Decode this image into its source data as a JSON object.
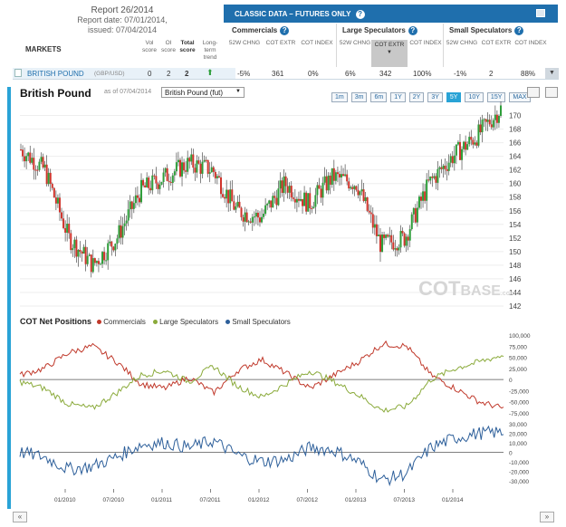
{
  "report": {
    "title": "Report 26/2014",
    "date": "Report date: 07/01/2014,",
    "issued": "issued: 07/04/2014"
  },
  "markets_header": "MARKETS",
  "columns": {
    "vol": "Vol score",
    "oi": "OI score",
    "total": "Total score",
    "trend": "Long-term trend"
  },
  "classic": {
    "title": "CLASSIC DATA – FUTURES ONLY",
    "help": "?"
  },
  "groups": [
    {
      "name": "Commercials",
      "help": "?",
      "subs": [
        "52W CHNG",
        "COT EXTR",
        "COT INDEX"
      ]
    },
    {
      "name": "Large Speculators",
      "help": "?",
      "subs": [
        "52W CHNG",
        "COT EXTR",
        "COT INDEX"
      ]
    },
    {
      "name": "Small Speculators",
      "help": "?",
      "subs": [
        "52W CHNG",
        "COT EXTR",
        "COT INDEX"
      ]
    }
  ],
  "row": {
    "market": "BRITISH POUND",
    "pair": "(GBP/USD)",
    "vol": "0",
    "oi": "2",
    "total": "2",
    "comm": [
      "-5%",
      "361",
      "0%"
    ],
    "large": [
      "6%",
      "342",
      "100%"
    ],
    "small": [
      "-1%",
      "2",
      "88%"
    ]
  },
  "panel": {
    "title": "British Pound",
    "asof": "as of 07/04/2014",
    "select": "British Pound (fut)",
    "ranges": [
      "1m",
      "3m",
      "6m",
      "1Y",
      "2Y",
      "3Y",
      "5Y",
      "10Y",
      "15Y",
      "MAX"
    ],
    "active_range": "5Y"
  },
  "watermark": {
    "cot": "COT",
    "base": "BASE",
    "tld": ".com"
  },
  "legend": {
    "title": "COT Net Positions",
    "items": [
      "Commercials",
      "Large Speculators",
      "Small Speculators"
    ]
  },
  "colors": {
    "commercials": "#c0392b",
    "large": "#8aaa3a",
    "small": "#2d5f9a",
    "accent": "#29a3d6",
    "header": "#1f6fad"
  },
  "nav": {
    "prev": "«",
    "next": "»"
  },
  "chart_data": [
    {
      "type": "candlestick",
      "title": "British Pound",
      "ylim": [
        142,
        171
      ],
      "yticks": [
        142,
        144,
        146,
        148,
        150,
        152,
        154,
        156,
        158,
        160,
        162,
        164,
        166,
        168,
        170
      ],
      "x": [
        "2009-07",
        "2009-10",
        "2010-01",
        "2010-04",
        "2010-07",
        "2010-10",
        "2011-01",
        "2011-04",
        "2011-07",
        "2011-10",
        "2012-01",
        "2012-04",
        "2012-07",
        "2012-10",
        "2013-01",
        "2013-04",
        "2013-07",
        "2013-10",
        "2014-01",
        "2014-04",
        "2014-07"
      ],
      "close": [
        165,
        162,
        152,
        148,
        152,
        159,
        161,
        163,
        162,
        156,
        155,
        160,
        157,
        161,
        160,
        151,
        152,
        160,
        164,
        167,
        171
      ]
    },
    {
      "type": "line",
      "title": "COT Net Positions",
      "ylim": [
        -75000,
        100000
      ],
      "yticks": [
        "100,000",
        "75,000",
        "50,000",
        "25,000",
        "0",
        "-25,000",
        "-50,000",
        "-75,000"
      ],
      "x": [
        "2009-07",
        "2009-10",
        "2010-01",
        "2010-04",
        "2010-07",
        "2010-10",
        "2011-01",
        "2011-04",
        "2011-07",
        "2011-10",
        "2012-01",
        "2012-04",
        "2012-07",
        "2012-10",
        "2013-01",
        "2013-04",
        "2013-07",
        "2013-10",
        "2014-01",
        "2014-04",
        "2014-07"
      ],
      "series": [
        {
          "name": "Commercials",
          "values": [
            10,
            25,
            60,
            75,
            40,
            -10,
            -20,
            5,
            -30,
            20,
            45,
            15,
            -20,
            10,
            40,
            80,
            75,
            10,
            -20,
            -50,
            -65
          ]
        },
        {
          "name": "Large Speculators",
          "values": [
            -5,
            -20,
            -55,
            -65,
            -30,
            10,
            20,
            -5,
            30,
            -15,
            -40,
            -10,
            20,
            -5,
            -35,
            -70,
            -60,
            0,
            25,
            40,
            55
          ]
        }
      ]
    },
    {
      "type": "line",
      "ylim": [
        -35000,
        30000
      ],
      "yticks": [
        "30,000",
        "20,000",
        "10,000",
        "0",
        "-10,000",
        "-20,000",
        "-30,000"
      ],
      "xticks": [
        "01/2010",
        "07/2010",
        "01/2011",
        "07/2011",
        "01/2012",
        "07/2012",
        "01/2013",
        "07/2013",
        "01/2014"
      ],
      "x": [
        "2009-07",
        "2009-10",
        "2010-01",
        "2010-04",
        "2010-07",
        "2010-10",
        "2011-01",
        "2011-04",
        "2011-07",
        "2011-10",
        "2012-01",
        "2012-04",
        "2012-07",
        "2012-10",
        "2013-01",
        "2013-04",
        "2013-07",
        "2013-10",
        "2014-01",
        "2014-04",
        "2014-07"
      ],
      "series": [
        {
          "name": "Small Speculators",
          "values": [
            0,
            -5000,
            -18000,
            -15000,
            -5000,
            8000,
            10000,
            5000,
            12000,
            -3000,
            -10000,
            -8000,
            5000,
            2000,
            -10000,
            -30000,
            -22000,
            5000,
            15000,
            20000,
            21000
          ]
        }
      ]
    }
  ]
}
